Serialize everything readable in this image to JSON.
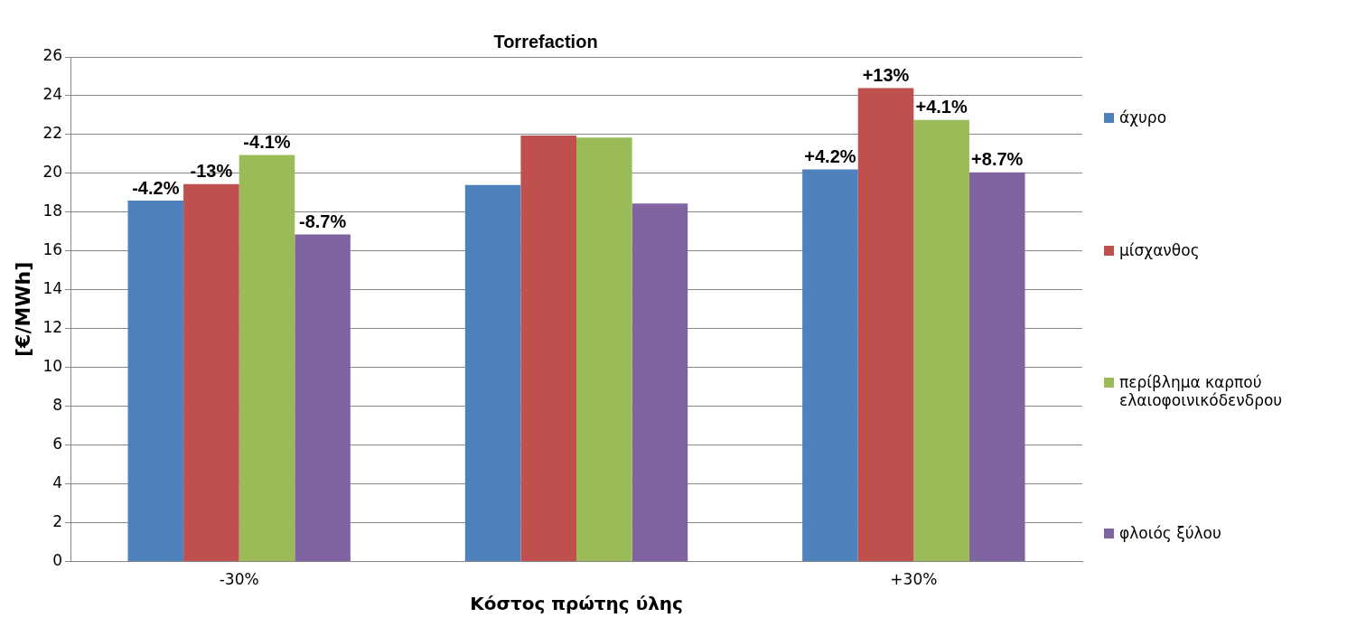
{
  "chart_data": {
    "type": "bar",
    "title": "Torrefaction",
    "xlabel": "Κόστος πρώτης ύλης",
    "ylabel": "[€/MWh]",
    "categories": [
      "-30%",
      null,
      "+30%"
    ],
    "series": [
      {
        "name": "άχυρο",
        "color": "#4f81bd",
        "values": [
          18.6,
          19.4,
          20.2
        ]
      },
      {
        "name": "μίσχανθος",
        "color": "#c0504d",
        "values": [
          19.45,
          21.95,
          24.4
        ]
      },
      {
        "name": "περίβλημα καρπού ελαιοφοινικόδενδρου",
        "color": "#9bbb59",
        "values": [
          20.95,
          21.85,
          22.75
        ]
      },
      {
        "name": "φλοιός ξύλου",
        "color": "#8064a2",
        "values": [
          16.85,
          18.45,
          20.05
        ]
      }
    ],
    "annotations": [
      "-4.2%",
      "-13%",
      "-4.1%",
      "-8.7%",
      "+4.2%",
      "+13%",
      "+4.1%",
      "+8.7%"
    ],
    "ylim": [
      0,
      26
    ],
    "yticks": [
      0,
      2,
      4,
      6,
      8,
      10,
      12,
      14,
      16,
      18,
      20,
      22,
      24,
      26
    ],
    "grid": "y",
    "legend": "right"
  }
}
